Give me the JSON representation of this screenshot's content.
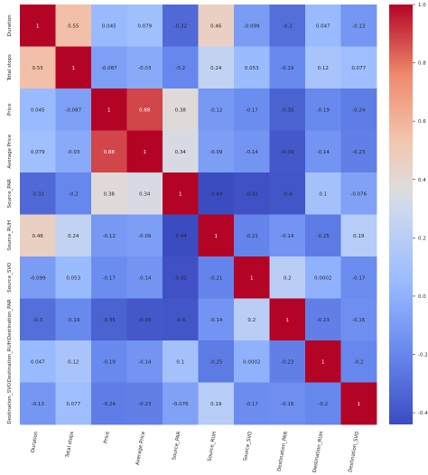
{
  "chart_data": {
    "type": "heatmap",
    "title": "",
    "labels": [
      "Duration",
      "Total stops",
      "Price",
      "Average Price",
      "Source_PAR",
      "Source_RUH",
      "Source_SVO",
      "Destination_PAR",
      "Destination_RUH",
      "Destination_SVO"
    ],
    "values": [
      [
        1,
        0.55,
        0.045,
        0.079,
        -0.32,
        0.46,
        -0.099,
        -0.3,
        0.047,
        -0.13
      ],
      [
        0.55,
        1,
        -0.087,
        -0.03,
        -0.2,
        0.24,
        0.053,
        -0.19,
        0.12,
        0.077
      ],
      [
        0.045,
        -0.087,
        1,
        0.88,
        0.38,
        -0.12,
        -0.17,
        -0.35,
        -0.19,
        -0.24
      ],
      [
        0.079,
        -0.03,
        0.88,
        1,
        0.34,
        -0.09,
        -0.14,
        -0.39,
        -0.14,
        -0.23
      ],
      [
        -0.32,
        -0.2,
        0.38,
        0.34,
        1,
        -0.44,
        -0.42,
        -0.4,
        0.1,
        -0.076
      ],
      [
        0.46,
        0.24,
        -0.12,
        -0.09,
        -0.44,
        1,
        -0.21,
        -0.14,
        -0.25,
        0.19
      ],
      [
        -0.099,
        0.053,
        -0.17,
        -0.14,
        -0.42,
        -0.21,
        1,
        0.2,
        0.0002,
        -0.17
      ],
      [
        -0.3,
        -0.19,
        -0.35,
        -0.39,
        -0.4,
        -0.14,
        0.2,
        1,
        -0.23,
        -0.16
      ],
      [
        0.047,
        0.12,
        -0.19,
        -0.14,
        0.1,
        -0.25,
        0.0002,
        -0.23,
        1,
        -0.2
      ],
      [
        -0.13,
        0.077,
        -0.24,
        -0.23,
        -0.076,
        0.19,
        -0.17,
        -0.16,
        -0.2,
        1
      ]
    ],
    "colormap": "coolwarm",
    "vmin": -0.44,
    "vmax": 1.0,
    "colorbar_ticks": [
      "1.0",
      "0.8",
      "0.6",
      "0.4",
      "0.2",
      "0.0",
      "-0.2",
      "-0.4"
    ],
    "annotations": true
  }
}
